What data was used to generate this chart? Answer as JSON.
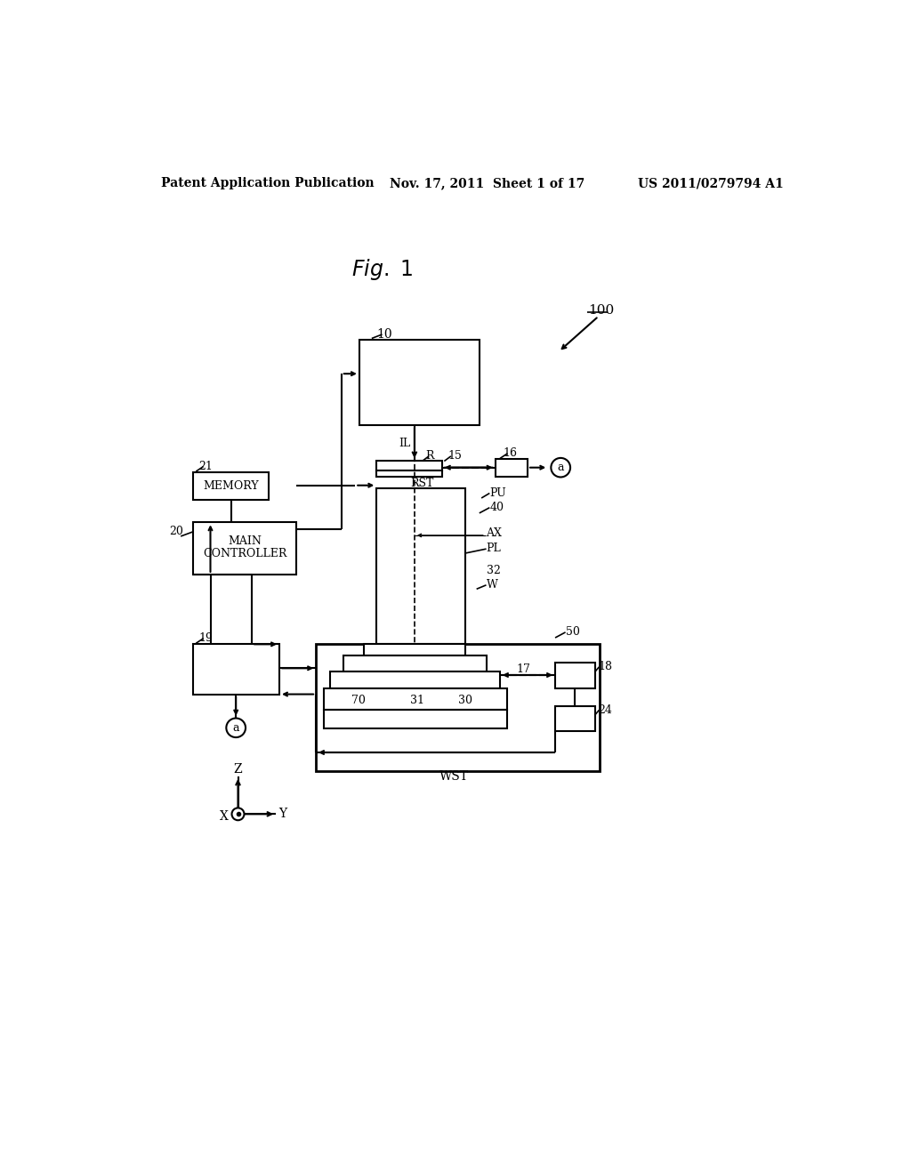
{
  "header_left": "Patent Application Publication",
  "header_mid": "Nov. 17, 2011  Sheet 1 of 17",
  "header_right": "US 2011/0279794 A1",
  "bg_color": "#ffffff",
  "line_color": "#000000",
  "text_color": "#000000",
  "fig_title": "Fig. 1"
}
